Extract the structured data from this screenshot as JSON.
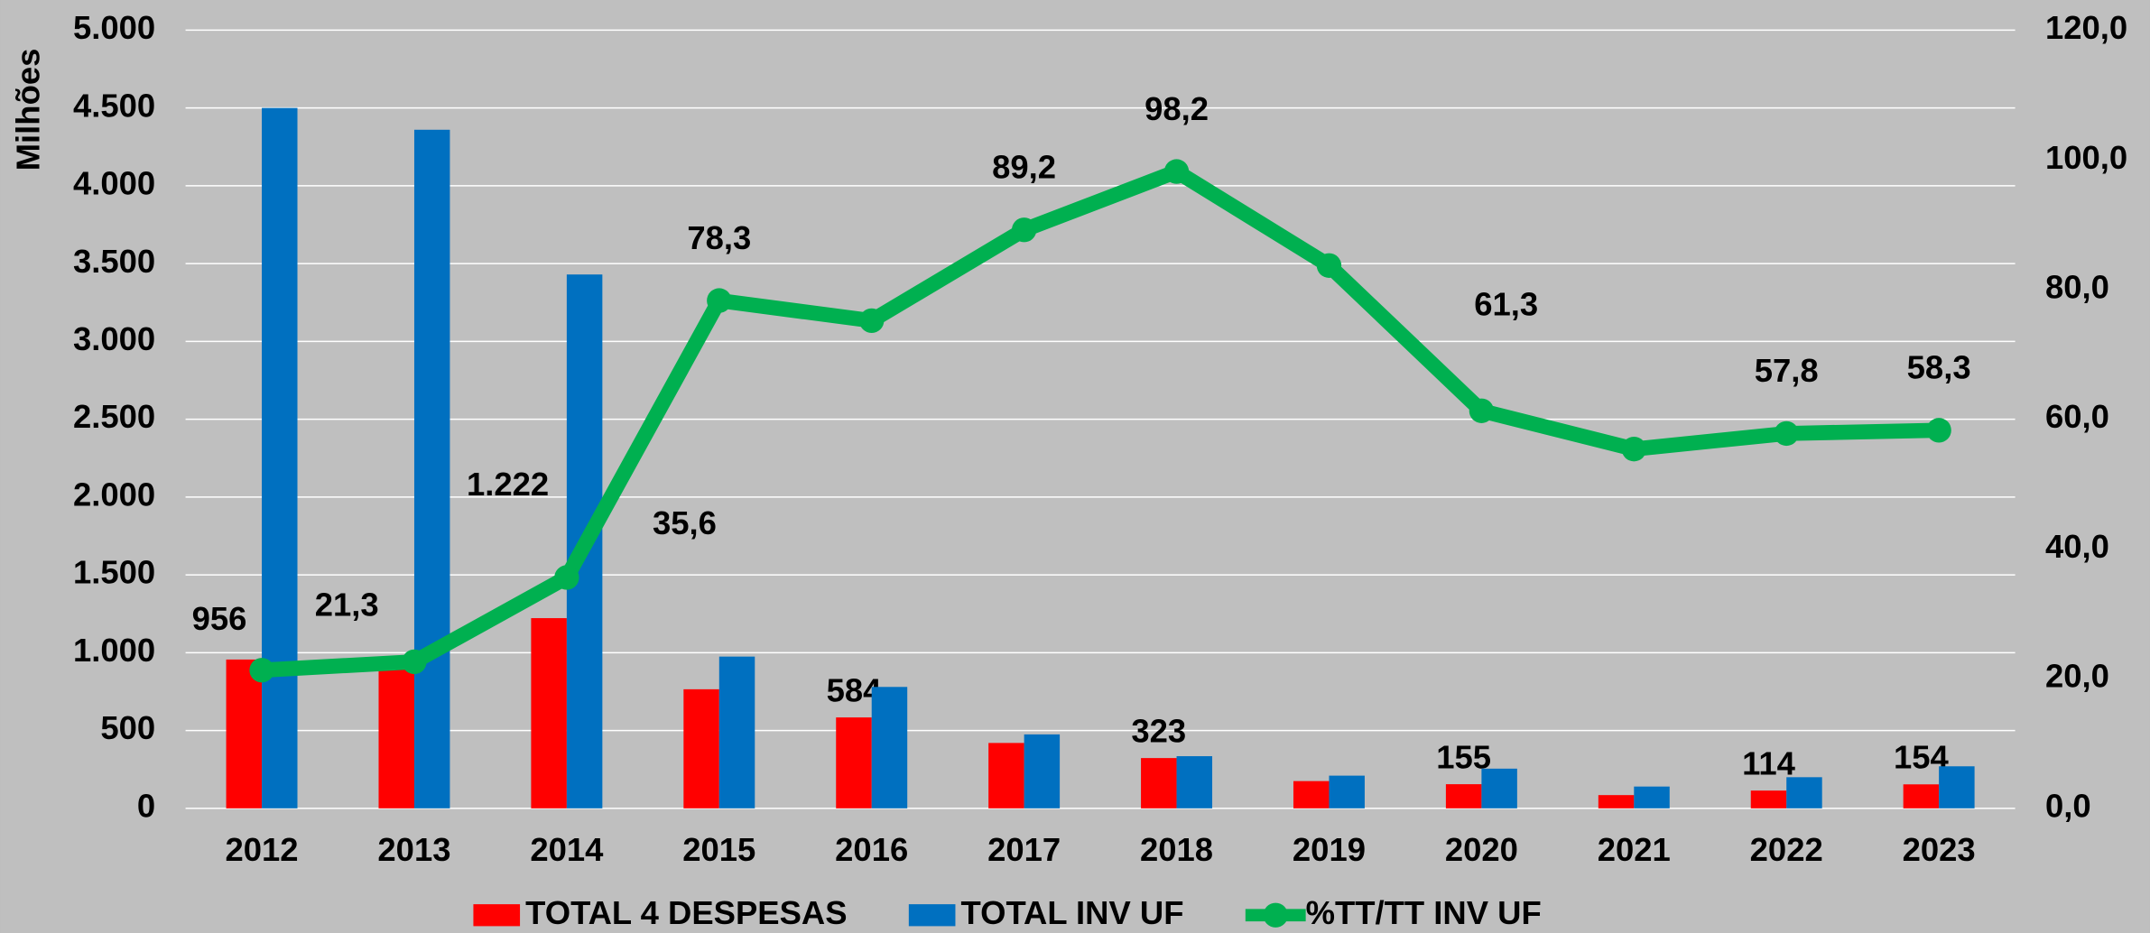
{
  "chart_data": {
    "type": "bar_line",
    "y_label": "Milhões",
    "categories": [
      "2012",
      "2013",
      "2014",
      "2015",
      "2016",
      "2017",
      "2018",
      "2019",
      "2020",
      "2021",
      "2022",
      "2023"
    ],
    "series": [
      {
        "name": "TOTAL 4 DESPESAS",
        "type": "bar",
        "color": "#ff0000",
        "values": [
          956,
          970,
          1222,
          765,
          584,
          420,
          323,
          175,
          155,
          85,
          114,
          154
        ],
        "value_labels": [
          "956",
          null,
          "1.222",
          null,
          "584",
          null,
          "323",
          null,
          "155",
          null,
          "114",
          "154"
        ]
      },
      {
        "name": "TOTAL INV UF",
        "type": "bar",
        "color": "#0070c0",
        "values": [
          4500,
          4360,
          3430,
          975,
          780,
          475,
          335,
          210,
          255,
          140,
          200,
          270
        ]
      },
      {
        "name": "%TT/TT INV UF",
        "type": "line",
        "axis": "y2",
        "color": "#00b050",
        "values": [
          21.3,
          22.6,
          35.6,
          78.3,
          75.2,
          89.2,
          98.2,
          83.7,
          61.3,
          55.4,
          57.8,
          58.3
        ],
        "value_labels": [
          "21,3",
          null,
          "35,6",
          "78,3",
          null,
          "89,2",
          "98,2",
          null,
          "61,3",
          null,
          "57,8",
          "58,3"
        ]
      }
    ],
    "ylim": [
      0,
      5000
    ],
    "yticks": [
      0,
      500,
      {
        "value": 1000,
        "label": "1.000"
      },
      {
        "value": 1500,
        "label": "1.500"
      },
      {
        "value": 2000,
        "label": "2.000"
      },
      {
        "value": 2500,
        "label": "2.500"
      },
      {
        "value": 3000,
        "label": "3.000"
      },
      {
        "value": 3500,
        "label": "3.500"
      },
      {
        "value": 4000,
        "label": "4.000"
      },
      {
        "value": 4500,
        "label": "4.500"
      },
      {
        "value": 5000,
        "label": "5.000"
      }
    ],
    "y2lim": [
      0,
      120
    ],
    "y2ticks": [
      {
        "value": 0,
        "label": "0,0"
      },
      {
        "value": 20,
        "label": "20,0"
      },
      {
        "value": 40,
        "label": "40,0"
      },
      {
        "value": 60,
        "label": "60,0"
      },
      {
        "value": 80,
        "label": "80,0"
      },
      {
        "value": 100,
        "label": "100,0"
      },
      {
        "value": 120,
        "label": "120,0"
      }
    ],
    "grid": true,
    "legend": "bottom"
  }
}
